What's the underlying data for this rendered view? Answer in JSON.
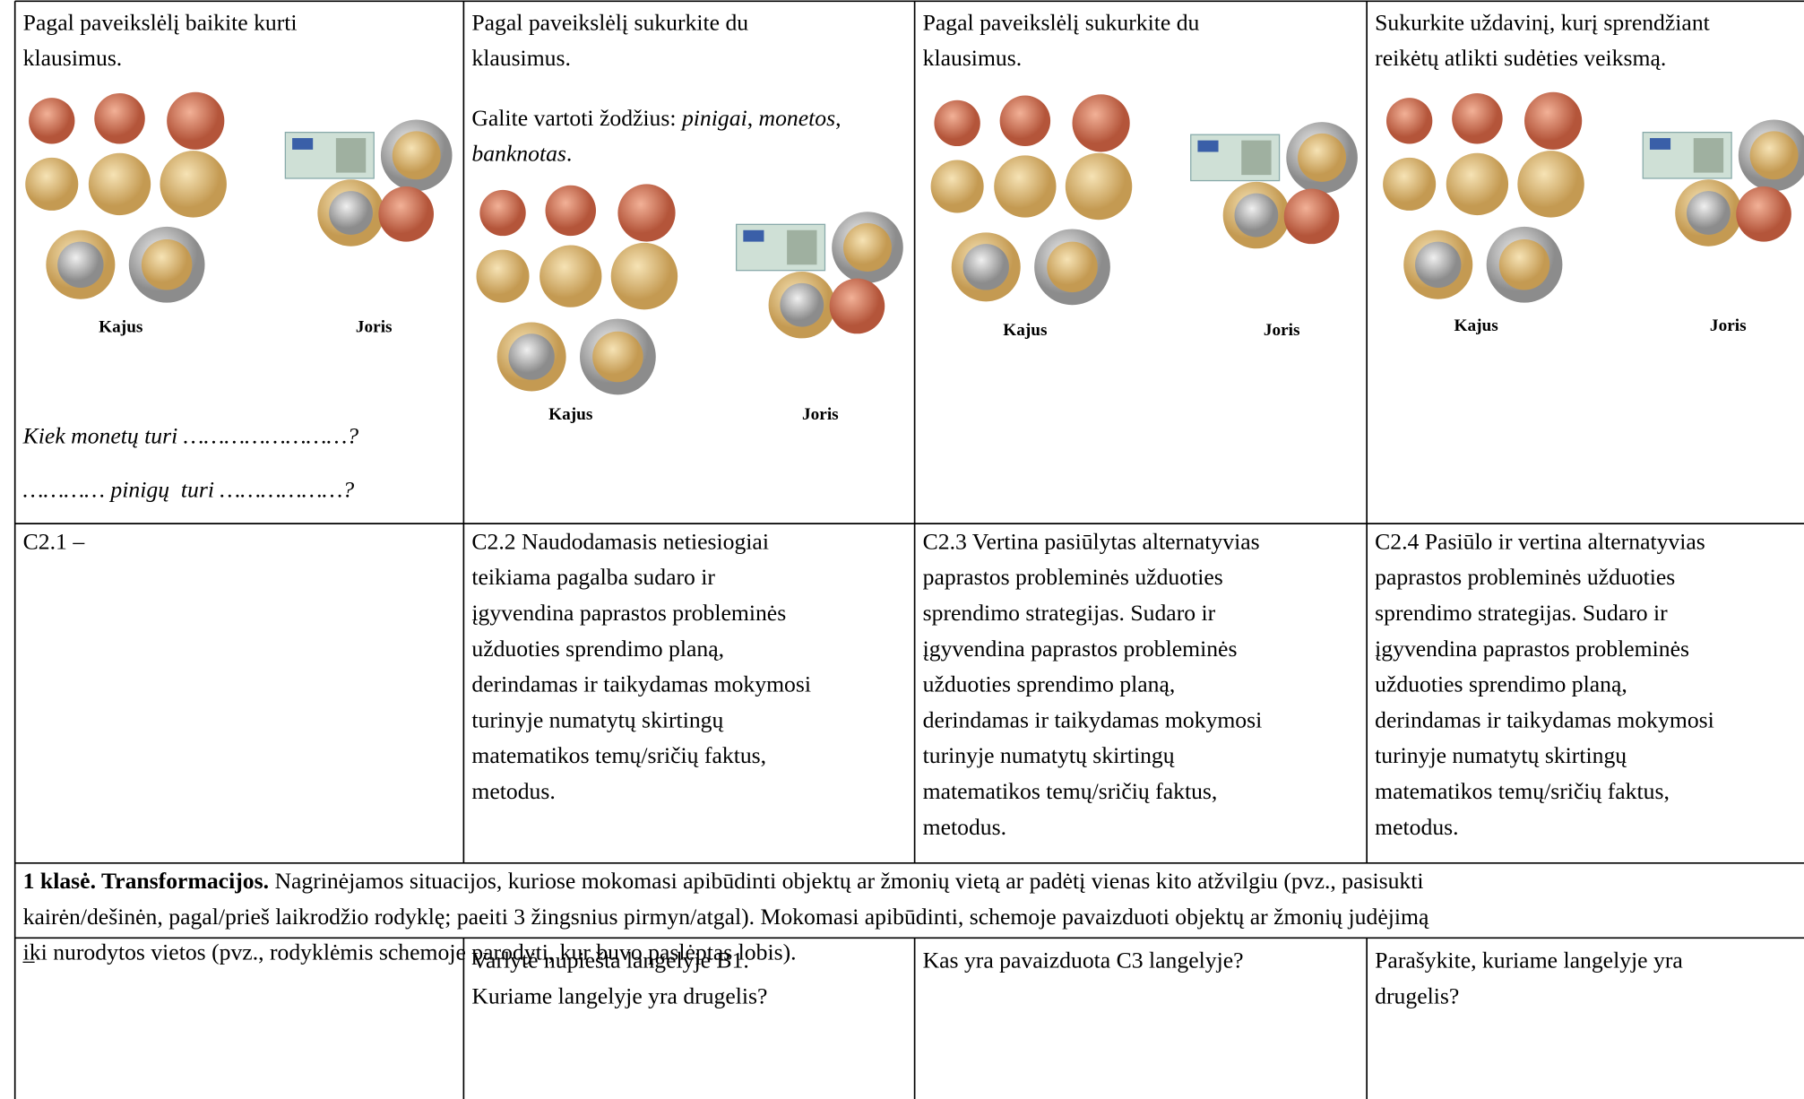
{
  "table": {
    "rows": [
      [
        {
          "prompt": [
            "Pagal paveikslėlį baikite kurti",
            "klausimus."
          ],
          "labels": [
            "Kajus",
            "Joris"
          ],
          "questions": [
            "Kiek monetų turi ……………………?",
            "………… pinigų  turi ………………?"
          ]
        },
        {
          "prompt": [
            "Pagal paveikslėlį sukurkite du",
            "klausimus."
          ],
          "hint": [
            "Galite vartoti  žodžius: ",
            "pinigai",
            ", ",
            "monetos",
            ", ",
            "banknotas",
            "."
          ],
          "labels": [
            "Kajus",
            "Joris"
          ]
        },
        {
          "prompt": [
            "Pagal paveikslėlį sukurkite  du",
            "klausimus."
          ],
          "labels": [
            "Kajus",
            "Joris"
          ]
        },
        {
          "prompt": [
            "Sukurkite uždavinį, kurį sprendžiant",
            "reikėtų atlikti sudėties veiksmą."
          ],
          "labels": [
            "Kajus",
            "Joris"
          ]
        }
      ],
      [
        [
          "C2.1 –"
        ],
        [
          "C2.2 Naudodamasis netiesiogiai",
          "teikiama pagalba sudaro ir",
          "įgyvendina paprastos probleminės",
          "užduoties sprendimo planą,",
          "derindamas ir taikydamas mokymosi",
          "turinyje numatytų skirtingų",
          "matematikos temų/sričių faktus,",
          "metodus."
        ],
        [
          "C2.3 Vertina pasiūlytas alternatyvias",
          "paprastos probleminės užduoties",
          "sprendimo strategijas. Sudaro ir",
          "įgyvendina paprastos probleminės",
          "užduoties sprendimo planą,",
          "derindamas ir taikydamas mokymosi",
          "turinyje numatytų skirtingų",
          "matematikos temų/sričių faktus,",
          "metodus."
        ],
        [
          "C2.4 Pasiūlo ir vertina alternatyvias",
          "paprastos probleminės užduoties",
          "sprendimo strategijas. Sudaro ir",
          "įgyvendina paprastos probleminės",
          "užduoties sprendimo planą,",
          "derindamas ir taikydamas mokymosi",
          "turinyje numatytų skirtingų",
          "matematikos temų/sričių faktus,",
          "metodus."
        ]
      ],
      {
        "bold": "1 klasė. Transformacijos.",
        "lines": [
          " Nagrinėjamos situacijos, kuriose mokomasi apibūdinti objektų ar žmonių vietą ar padėtį vienas kito atžvilgiu (pvz., pasisukti",
          "kairėn/dešinėn, pagal/prieš laikrodžio rodyklę; paeiti 3 žingsnius pirmyn/atgal). Mokomasi apibūdinti, schemoje pavaizduoti objektų ar žmonių judėjimą",
          "iki nurodytos vietos (pvz., rodyklėmis schemoje parodyti, kur buvo paslėptas lobis)."
        ]
      },
      [
        [
          "–"
        ],
        [
          "Varlytė nupiešta langelyje B1.",
          "Kuriame langelyje yra drugelis?"
        ],
        [
          "Kas yra pavaizduota C3 langelyje?"
        ],
        [
          "Parašykite, kuriame langelyje yra",
          "drugelis?"
        ]
      ]
    ]
  }
}
